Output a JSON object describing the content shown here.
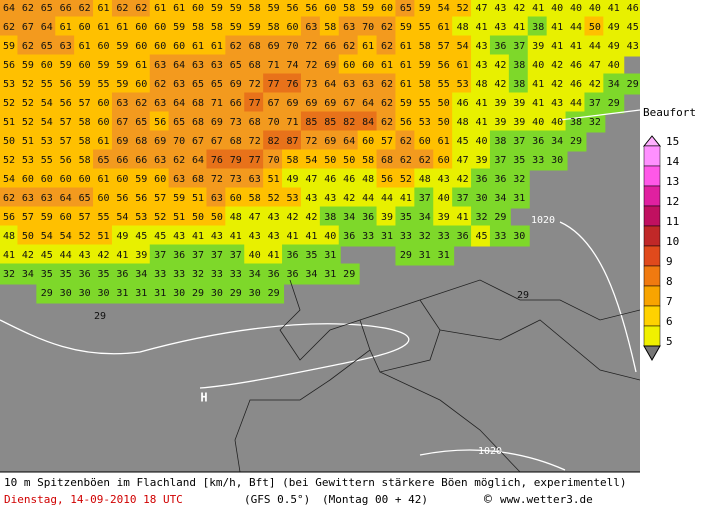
{
  "map": {
    "rows": [
      [
        64,
        62,
        65,
        66,
        62,
        61,
        62,
        62,
        61,
        61,
        60,
        59,
        59,
        58,
        59,
        56,
        56,
        60,
        58,
        59,
        60,
        65,
        59,
        54,
        52,
        47,
        43,
        42,
        41,
        40,
        40,
        40,
        41,
        46
      ],
      [
        62,
        67,
        64,
        61,
        60,
        61,
        61,
        60,
        60,
        59,
        58,
        58,
        59,
        59,
        58,
        60,
        63,
        58,
        63,
        70,
        62,
        59,
        55,
        61,
        48,
        41,
        43,
        41,
        38,
        41,
        44,
        50,
        49,
        45
      ],
      [
        59,
        62,
        65,
        63,
        61,
        60,
        59,
        60,
        60,
        60,
        61,
        61,
        62,
        68,
        69,
        70,
        72,
        66,
        62,
        61,
        62,
        61,
        58,
        57,
        54,
        43,
        36,
        37,
        39,
        41,
        41,
        44,
        49,
        43
      ],
      [
        56,
        59,
        60,
        59,
        60,
        59,
        59,
        61,
        63,
        64,
        63,
        63,
        65,
        68,
        71,
        74,
        72,
        69,
        60,
        60,
        61,
        61,
        59,
        56,
        61,
        43,
        42,
        38,
        40,
        42,
        46,
        47,
        40
      ],
      [
        53,
        52,
        55,
        56,
        59,
        55,
        59,
        60,
        62,
        63,
        65,
        65,
        69,
        72,
        77,
        76,
        73,
        64,
        63,
        63,
        62,
        61,
        58,
        55,
        53,
        48,
        42,
        38,
        41,
        42,
        46,
        42,
        34,
        29
      ],
      [
        52,
        52,
        54,
        56,
        57,
        60,
        63,
        62,
        63,
        64,
        68,
        71,
        66,
        77,
        67,
        69,
        69,
        69,
        67,
        64,
        62,
        59,
        55,
        50,
        46,
        41,
        39,
        39,
        41,
        43,
        44,
        37,
        29
      ],
      [
        51,
        52,
        54,
        57,
        58,
        60,
        67,
        65,
        56,
        65,
        68,
        69,
        73,
        68,
        70,
        71,
        85,
        85,
        82,
        84,
        62,
        56,
        53,
        50,
        48,
        41,
        39,
        39,
        40,
        40,
        38,
        32
      ],
      [
        50,
        51,
        53,
        57,
        58,
        61,
        69,
        68,
        69,
        70,
        67,
        67,
        68,
        72,
        82,
        87,
        72,
        69,
        64,
        60,
        57,
        62,
        60,
        61,
        45,
        40,
        38,
        37,
        36,
        34,
        29
      ],
      [
        52,
        53,
        55,
        56,
        58,
        65,
        66,
        66,
        63,
        62,
        64,
        76,
        79,
        77,
        70,
        58,
        54,
        50,
        50,
        58,
        68,
        62,
        62,
        60,
        47,
        39,
        37,
        35,
        33,
        30
      ],
      [
        54,
        60,
        60,
        60,
        60,
        61,
        60,
        59,
        60,
        63,
        68,
        72,
        73,
        63,
        51,
        49,
        47,
        46,
        46,
        48,
        56,
        52,
        48,
        43,
        42,
        36,
        36,
        32
      ],
      [
        62,
        63,
        63,
        64,
        65,
        60,
        56,
        56,
        57,
        59,
        51,
        63,
        60,
        58,
        52,
        53,
        43,
        43,
        42,
        44,
        44,
        41,
        37,
        40,
        37,
        30,
        34,
        31
      ],
      [
        56,
        57,
        59,
        60,
        57,
        55,
        54,
        53,
        52,
        51,
        50,
        50,
        48,
        47,
        43,
        42,
        42,
        38,
        34,
        36,
        39,
        35,
        34,
        39,
        41,
        32,
        29
      ],
      [
        48,
        50,
        54,
        54,
        52,
        51,
        49,
        45,
        45,
        43,
        41,
        43,
        41,
        43,
        43,
        41,
        41,
        40,
        36,
        33,
        31,
        33,
        32,
        33,
        36,
        45,
        33,
        30
      ],
      [
        41,
        42,
        45,
        44,
        43,
        42,
        41,
        39,
        37,
        36,
        37,
        37,
        37,
        40,
        41,
        36,
        35,
        31,
        null,
        null,
        null,
        29,
        31,
        31
      ],
      [
        32,
        34,
        35,
        35,
        36,
        35,
        36,
        34,
        33,
        33,
        32,
        33,
        33,
        34,
        36,
        36,
        34,
        31,
        29
      ],
      [
        null,
        null,
        29,
        30,
        30,
        30,
        31,
        31,
        31,
        30,
        29,
        30,
        29,
        30,
        29
      ]
    ],
    "extra_values": [
      29,
      29
    ],
    "isobar_labels": [
      "1020",
      "1020"
    ],
    "high_label": "H"
  },
  "legend": {
    "title": "Beaufort",
    "levels": [
      15,
      14,
      13,
      12,
      11,
      10,
      9,
      8,
      7,
      6,
      5
    ]
  },
  "footer": {
    "line1": "10 m Spitzenböen im Flachland [km/h, Bft] (bei Gewittern stärkere Böen möglich, experimentell)",
    "date": "Dienstag, 14-09-2010  18 UTC",
    "model": "(GFS 0.5°)",
    "run": "(Montag 00 + 42)",
    "copyright": "©",
    "site": "www.wetter3.de"
  }
}
